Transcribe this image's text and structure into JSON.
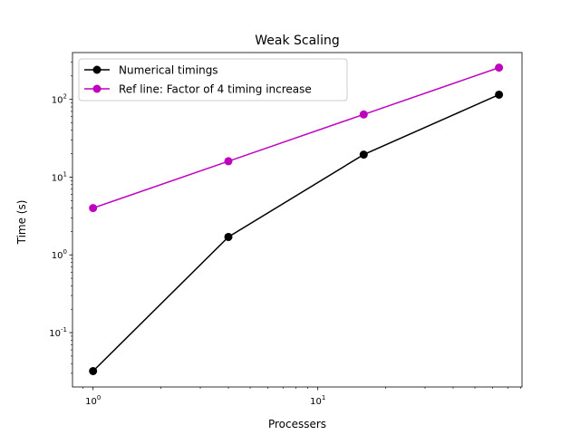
{
  "chart_data": {
    "type": "line",
    "title": "Weak Scaling",
    "xlabel": "Processers",
    "ylabel": "Time (s)",
    "xscale": "log",
    "yscale": "log",
    "xlim": [
      0.81,
      81
    ],
    "ylim": [
      0.02,
      400
    ],
    "x": [
      1,
      4,
      16,
      64
    ],
    "x_ticks": [
      {
        "value": 1,
        "label": "10^0"
      },
      {
        "value": 10,
        "label": "10^1"
      }
    ],
    "y_ticks": [
      {
        "value": 0.1,
        "label": "10^-1"
      },
      {
        "value": 1,
        "label": "10^0"
      },
      {
        "value": 10,
        "label": "10^1"
      },
      {
        "value": 100,
        "label": "10^2"
      }
    ],
    "grid": false,
    "legend_position": "top-left",
    "series": [
      {
        "name": "Numerical timings",
        "color": "#000000",
        "marker": "circle",
        "values": [
          0.032,
          1.7,
          19.5,
          115
        ]
      },
      {
        "name": "Ref line: Factor of 4 timing increase",
        "color": "#bf00bf",
        "marker": "circle",
        "values": [
          4,
          16,
          64,
          256
        ]
      }
    ]
  }
}
